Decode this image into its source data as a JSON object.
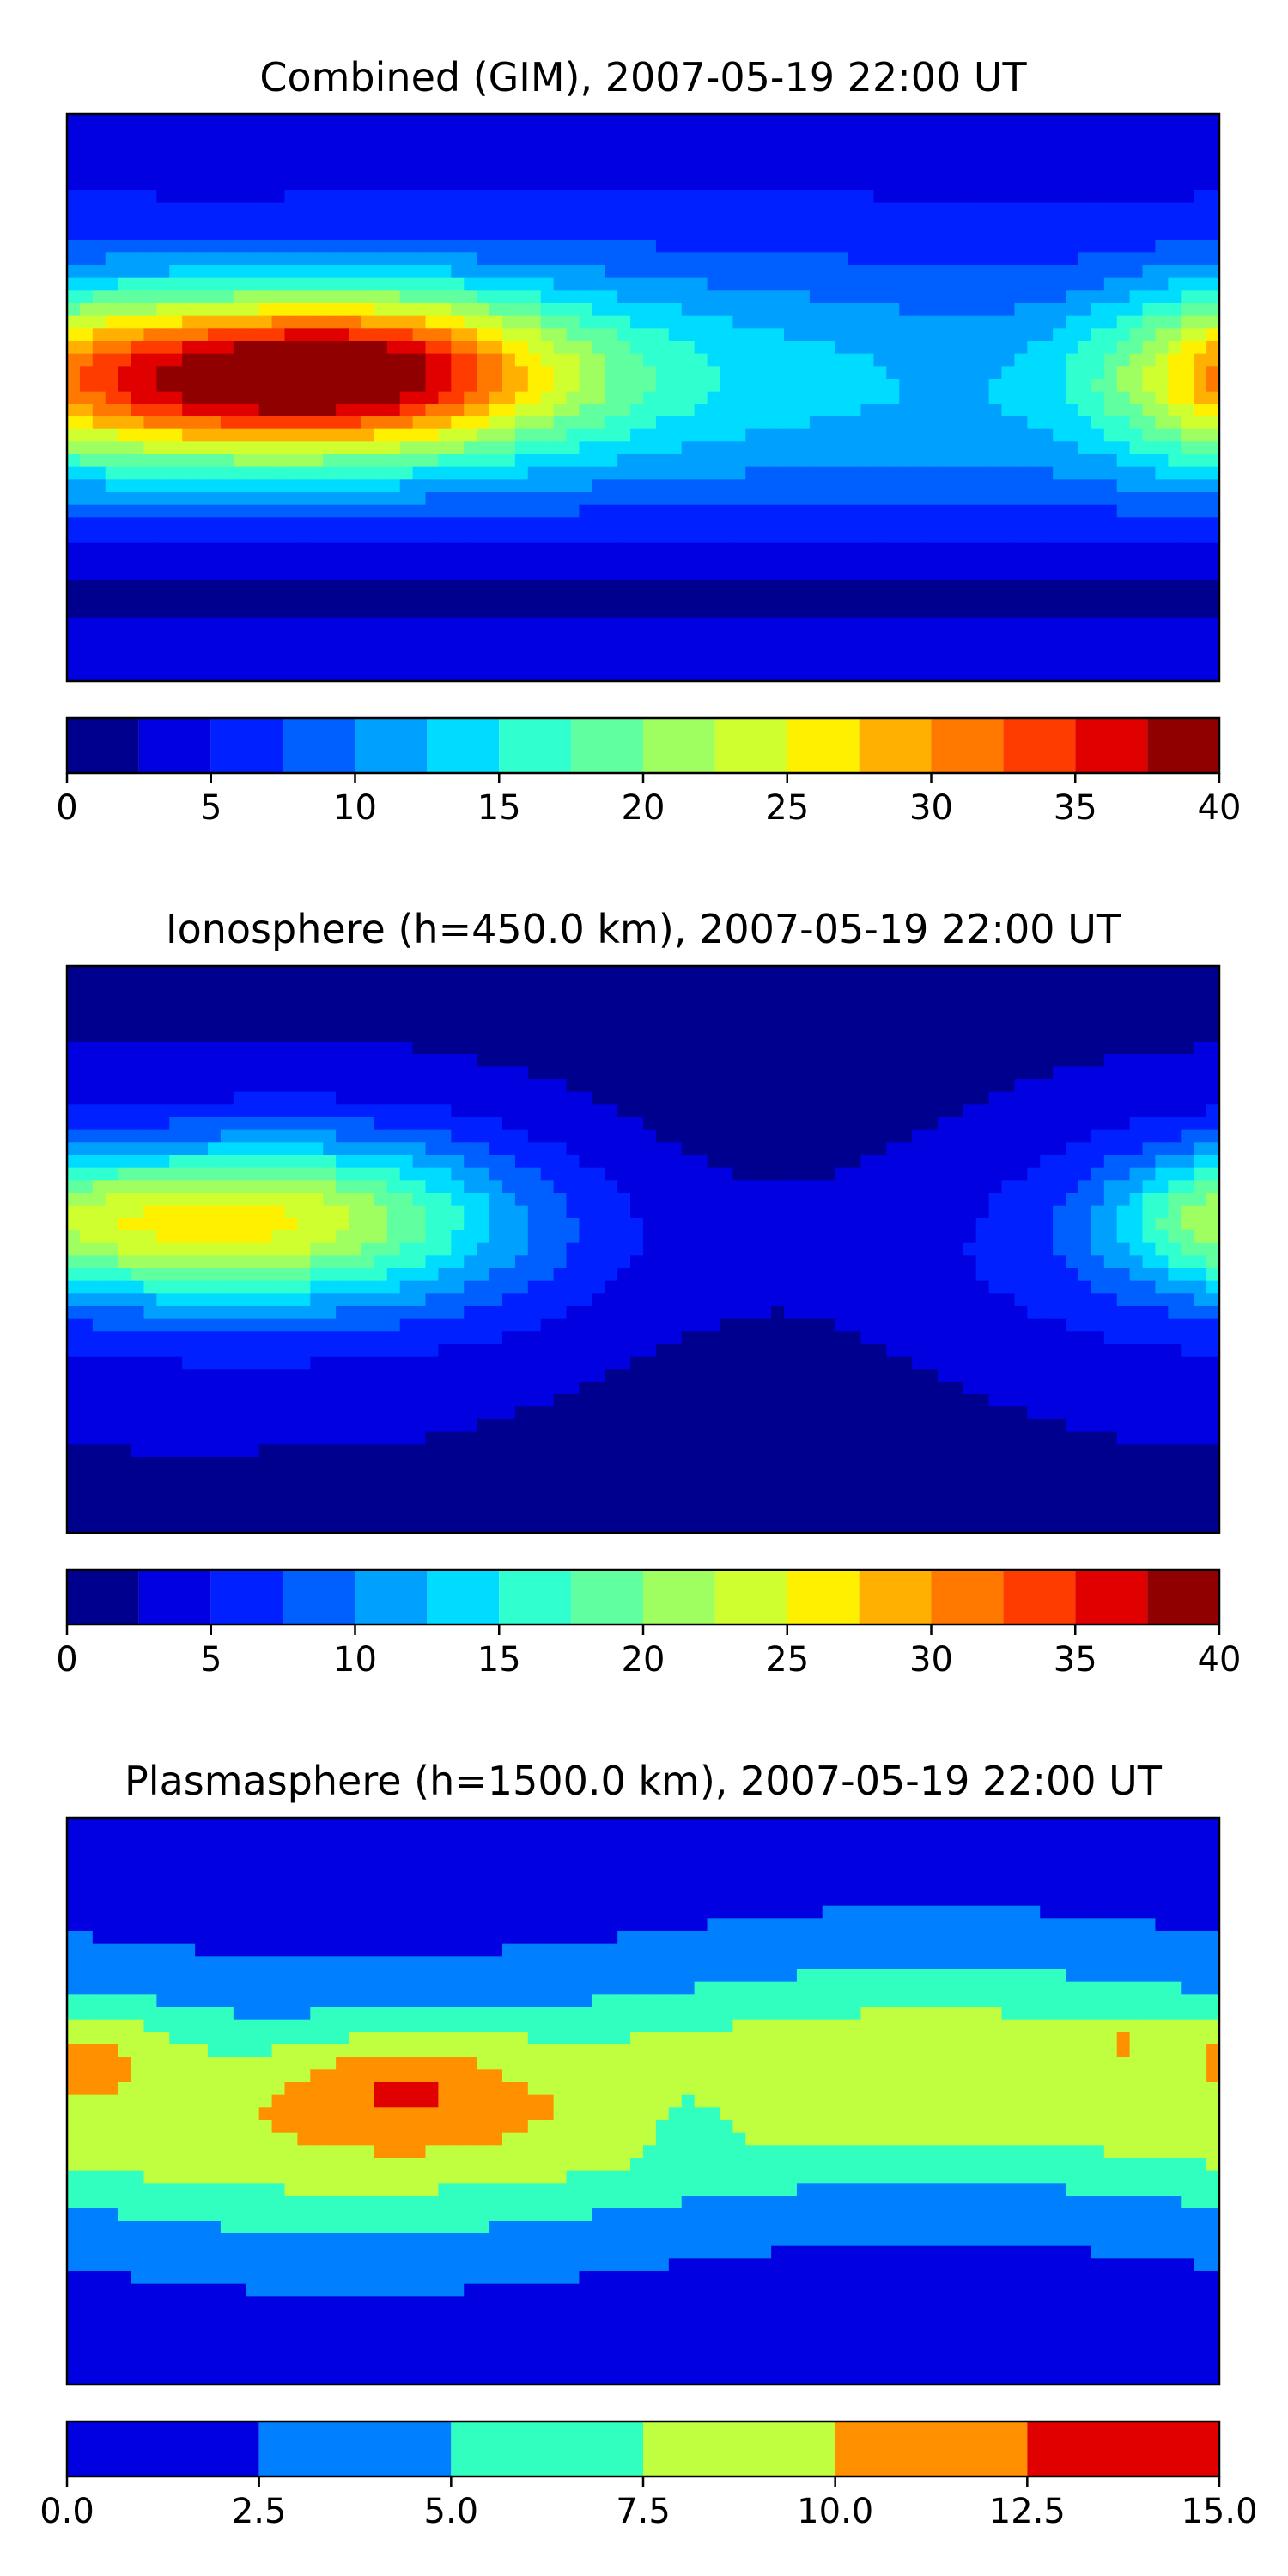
{
  "chart_data": [
    {
      "type": "heatmap",
      "title": "Combined (GIM), 2007-05-19 22:00 UT",
      "field": "combined",
      "levels": [
        0,
        2.5,
        5,
        7.5,
        10,
        12.5,
        15,
        17.5,
        20,
        22.5,
        25,
        27.5,
        30,
        32.5,
        35,
        37.5,
        40
      ],
      "colors": [
        "#00008f",
        "#0000e0",
        "#0020ff",
        "#0060ff",
        "#00a0ff",
        "#00dcff",
        "#30ffd0",
        "#60ffa0",
        "#a0ff60",
        "#d0ff30",
        "#fff000",
        "#ffb000",
        "#ff7800",
        "#ff3c00",
        "#e00000",
        "#900000"
      ],
      "colorbar": {
        "ticks": [
          0,
          5,
          10,
          15,
          20,
          25,
          30,
          35,
          40
        ],
        "tick_labels": [
          "0",
          "5",
          "10",
          "15",
          "20",
          "25",
          "30",
          "35",
          "40"
        ]
      },
      "xlim": [
        -180,
        180
      ],
      "ylim": [
        -90,
        90
      ],
      "peak": {
        "lon": -80,
        "lat": 8,
        "value": 34
      }
    },
    {
      "type": "heatmap",
      "title": "Ionosphere  (h=450.0 km), 2007-05-19 22:00 UT",
      "field": "ionosphere",
      "levels": [
        0,
        2.5,
        5,
        7.5,
        10,
        12.5,
        15,
        17.5,
        20,
        22.5,
        25,
        27.5,
        30,
        32.5,
        35,
        37.5,
        40
      ],
      "colors": [
        "#00008f",
        "#0000e0",
        "#0020ff",
        "#0060ff",
        "#00a0ff",
        "#00dcff",
        "#30ffd0",
        "#60ffa0",
        "#a0ff60",
        "#d0ff30",
        "#fff000",
        "#ffb000",
        "#ff7800",
        "#ff3c00",
        "#e00000",
        "#900000"
      ],
      "colorbar": {
        "ticks": [
          0,
          5,
          10,
          15,
          20,
          25,
          30,
          35,
          40
        ],
        "tick_labels": [
          "0",
          "5",
          "10",
          "15",
          "20",
          "25",
          "30",
          "35",
          "40"
        ]
      },
      "xlim": [
        -180,
        180
      ],
      "ylim": [
        -90,
        90
      ],
      "peak": {
        "lon": -125,
        "lat": 10,
        "value": 24
      }
    },
    {
      "type": "heatmap",
      "title": "Plasmasphere (h=1500.0 km), 2007-05-19 22:00 UT",
      "field": "plasmasphere",
      "levels": [
        0,
        2.5,
        5,
        7.5,
        10,
        12.5,
        15
      ],
      "colors": [
        "#0000e0",
        "#0080ff",
        "#30ffc0",
        "#c0ff40",
        "#ff9000",
        "#e00000"
      ],
      "colorbar": {
        "ticks": [
          0,
          2.5,
          5,
          7.5,
          10,
          12.5,
          15
        ],
        "tick_labels": [
          "0.0",
          "2.5",
          "5.0",
          "7.5",
          "10.0",
          "12.5",
          "15.0"
        ]
      },
      "xlim": [
        -180,
        180
      ],
      "ylim": [
        -90,
        90
      ],
      "peak": {
        "lon": -72,
        "lat": 6,
        "value": 13
      }
    }
  ]
}
